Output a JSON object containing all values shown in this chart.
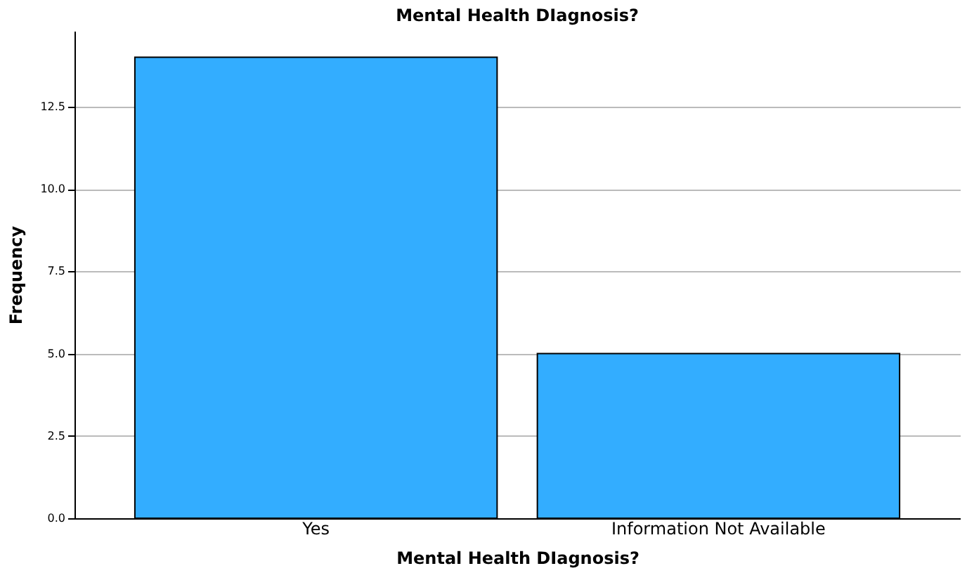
{
  "chart_data": {
    "type": "bar",
    "title": "Mental Health DIagnosis?",
    "xlabel": "Mental Health DIagnosis?",
    "ylabel": "Frequency",
    "categories": [
      "Yes",
      "Information Not Available"
    ],
    "values": [
      14,
      5
    ],
    "color": "#33adff",
    "ylim": [
      0,
      14.8
    ],
    "yticks": [
      {
        "value": 0,
        "label": "0.0"
      },
      2.5,
      {
        "value": 5,
        "label": "5.0"
      },
      7.5,
      {
        "value": 10,
        "label": "10.0"
      },
      12.5
    ],
    "grid": "y"
  }
}
